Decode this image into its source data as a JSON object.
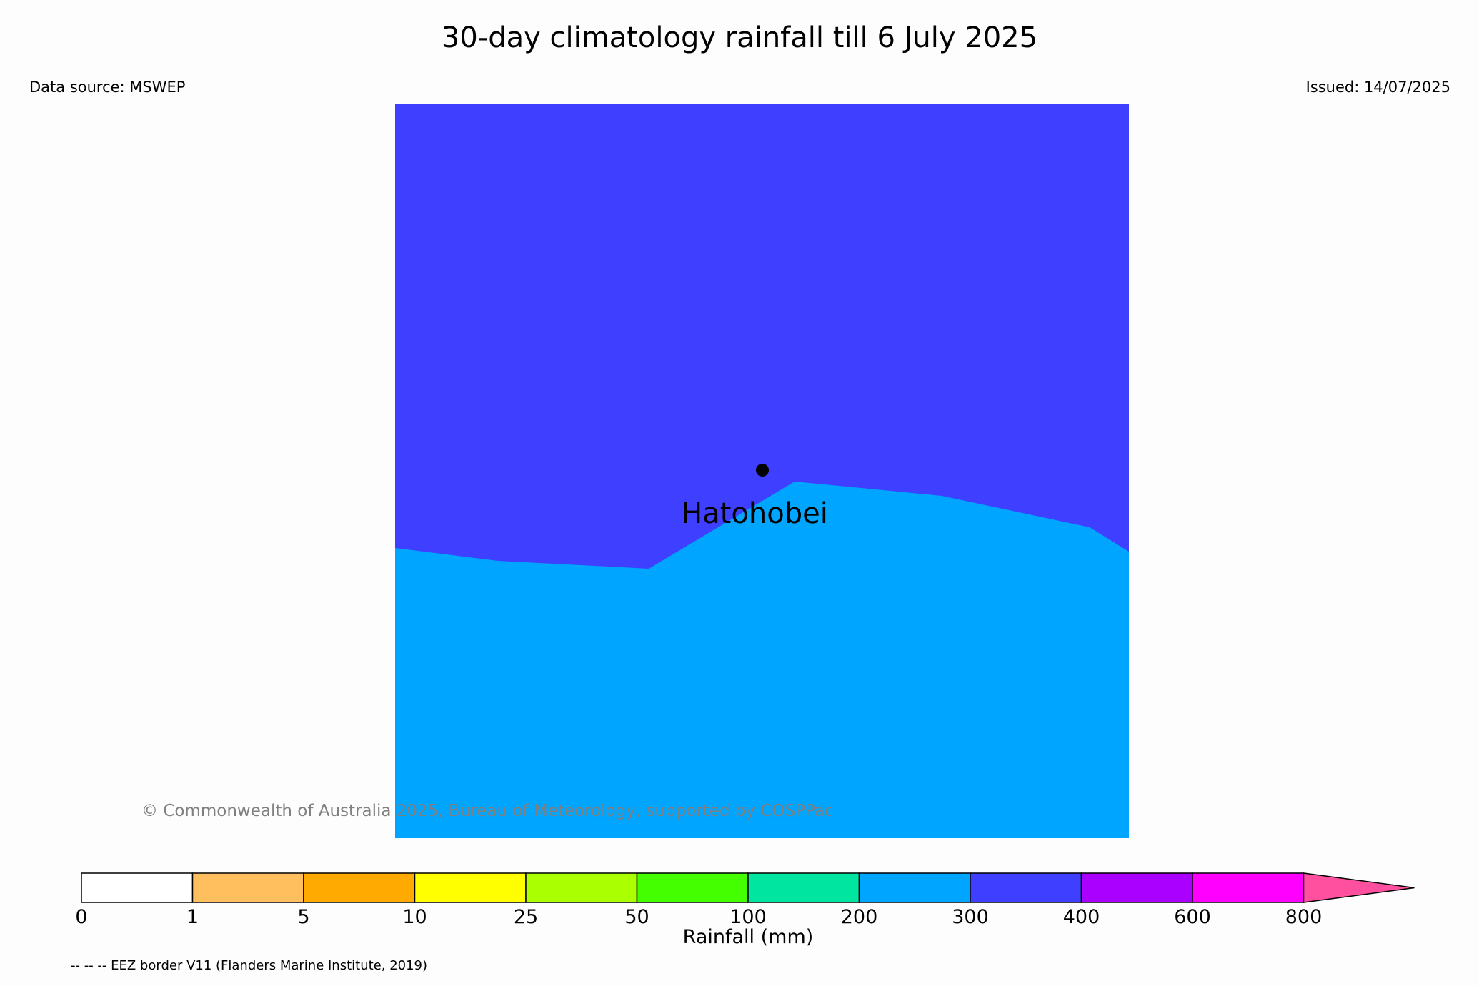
{
  "header": {
    "title": "30-day climatology rainfall till 6 July 2025",
    "data_source": "Data source: MSWEP",
    "issued": "Issued: 14/07/2025"
  },
  "map": {
    "site_name": "Hatohobei",
    "regions": [
      {
        "name": "300-400 mm",
        "color": "#3f3fff"
      },
      {
        "name": "200-300 mm",
        "color": "#00a5ff"
      }
    ],
    "copyright": "© Commonwealth of Australia 2025, Bureau of Meteorology, supported by COSPPac"
  },
  "colorbar": {
    "label": "Rainfall (mm)",
    "ticks": [
      "0",
      "1",
      "5",
      "10",
      "25",
      "50",
      "100",
      "200",
      "300",
      "400",
      "600",
      "800"
    ],
    "colors": [
      "#ffffff",
      "#ffbf5f",
      "#ffaa00",
      "#ffff00",
      "#aaff00",
      "#44ff00",
      "#00e5a0",
      "#00a5ff",
      "#3f3fff",
      "#aa00ff",
      "#ff00ff"
    ],
    "extend_color": "#ff4f9f"
  },
  "footer": {
    "eez_note": "-- -- -- EEZ border V11 (Flanders Marine Institute, 2019)"
  }
}
